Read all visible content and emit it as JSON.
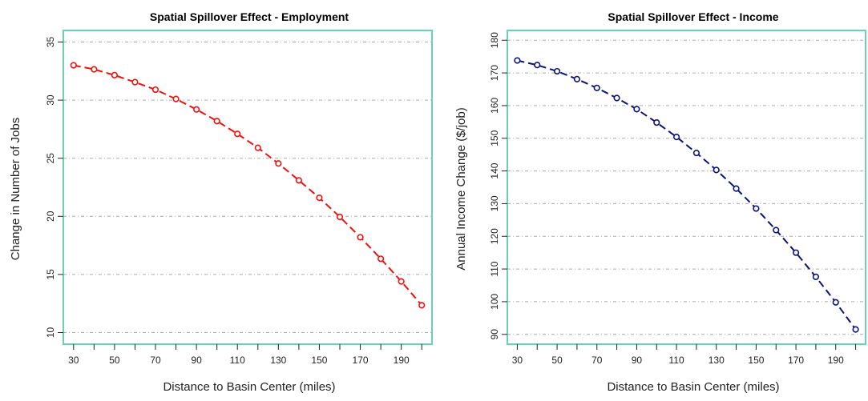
{
  "chart_data": [
    {
      "type": "line",
      "title": "Spatial Spillover Effect - Employment",
      "xlabel": "Distance to Basin Center (miles)",
      "ylabel": "Change in Number of Jobs",
      "x": [
        30,
        40,
        50,
        60,
        70,
        80,
        90,
        100,
        110,
        120,
        130,
        140,
        150,
        160,
        170,
        180,
        190,
        200
      ],
      "series": [
        {
          "values": [
            33.0,
            32.65,
            32.15,
            31.55,
            30.9,
            30.1,
            29.2,
            28.2,
            27.1,
            25.9,
            24.55,
            23.1,
            21.6,
            19.95,
            18.2,
            16.35,
            14.4,
            12.35
          ]
        }
      ],
      "xticks": [
        30,
        40,
        50,
        60,
        70,
        80,
        90,
        100,
        110,
        120,
        130,
        140,
        150,
        160,
        170,
        180,
        190,
        200
      ],
      "xtick_labels": [
        "30",
        "50",
        "70",
        "90",
        "110",
        "130",
        "150",
        "170",
        "190"
      ],
      "yticks": [
        10,
        15,
        20,
        25,
        30,
        35
      ],
      "xlim": [
        25,
        205
      ],
      "ylim": [
        9,
        36
      ],
      "grid": "horizontal-dashed",
      "colors": {
        "line": "#ee1111",
        "frame": "#6fcfb2",
        "grid": "#aaaaaa"
      }
    },
    {
      "type": "line",
      "title": "Spatial Spillover Effect - Income",
      "xlabel": "Distance to Basin Center (miles)",
      "ylabel": "Annual Income Change ($/job)",
      "x": [
        30,
        40,
        50,
        60,
        70,
        80,
        90,
        100,
        110,
        120,
        130,
        140,
        150,
        160,
        170,
        180,
        190,
        200
      ],
      "series": [
        {
          "values": [
            173.8,
            172.4,
            170.5,
            168.1,
            165.4,
            162.3,
            158.9,
            154.8,
            150.4,
            145.5,
            140.3,
            134.6,
            128.5,
            121.9,
            115.0,
            107.6,
            99.8,
            91.5
          ]
        }
      ],
      "xticks": [
        30,
        40,
        50,
        60,
        70,
        80,
        90,
        100,
        110,
        120,
        130,
        140,
        150,
        160,
        170,
        180,
        190,
        200
      ],
      "xtick_labels": [
        "30",
        "50",
        "70",
        "90",
        "110",
        "130",
        "150",
        "170",
        "190"
      ],
      "yticks": [
        90,
        100,
        110,
        120,
        130,
        140,
        150,
        160,
        170,
        180
      ],
      "xlim": [
        25,
        205
      ],
      "ylim": [
        87,
        183
      ],
      "grid": "horizontal-dashed",
      "colors": {
        "line": "#0d1475",
        "frame": "#6fcfb2",
        "grid": "#aaaaaa"
      }
    }
  ]
}
